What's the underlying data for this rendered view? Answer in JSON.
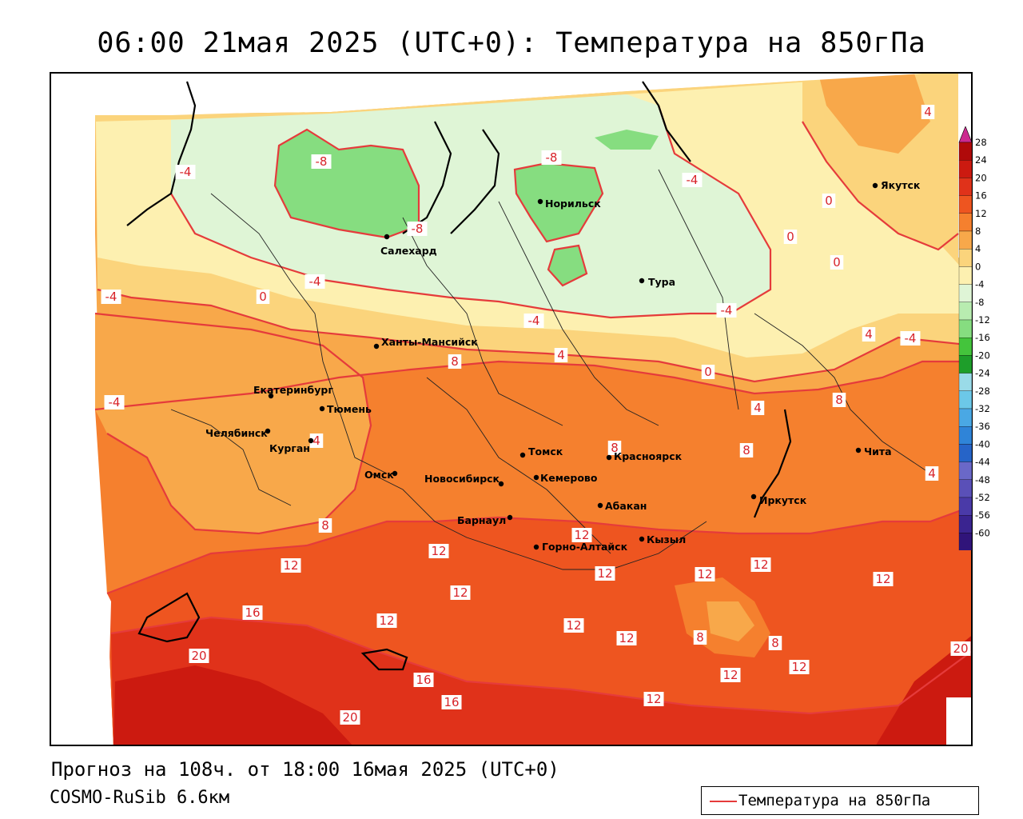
{
  "title": "06:00 21мая 2025 (UTC+0): Температура на 850гПа",
  "footer": {
    "forecast": "Прогноз на 108ч. от 18:00 16мая 2025 (UTC+0)",
    "model": "COSMO-RuSib 6.6км"
  },
  "legend": {
    "label": "Температура на 850гПа",
    "line_color": "#e53b3b"
  },
  "colorbar": {
    "ticks": [
      "28",
      "24",
      "20",
      "16",
      "12",
      "8",
      "4",
      "0",
      "-4",
      "-8",
      "-12",
      "-16",
      "-20",
      "-24",
      "-28",
      "-32",
      "-36",
      "-40",
      "-44",
      "-48",
      "-52",
      "-56",
      "-60"
    ],
    "colors": [
      "#b00a0a",
      "#cc1a10",
      "#e0321a",
      "#ee5520",
      "#f5802e",
      "#f8a84a",
      "#fbd47c",
      "#fdf0b0",
      "#dff5d6",
      "#b8ecb0",
      "#86dd80",
      "#44c43c",
      "#1e9e2a",
      "#9adbe8",
      "#6cc8e8",
      "#4aa8e4",
      "#2f84d8",
      "#2664c8",
      "#6a68c8",
      "#5a50b8",
      "#4a3aa8",
      "#3a2490",
      "#30147a"
    ],
    "top_arrow_color": "#cc2a90",
    "bottom_arrow_color": "#9a3ad0"
  },
  "cities": [
    {
      "name": "Салехард"
    },
    {
      "name": "Норильск"
    },
    {
      "name": "Якутск"
    },
    {
      "name": "Тура"
    },
    {
      "name": "Ханты-Мансийск"
    },
    {
      "name": "Екатеринбург"
    },
    {
      "name": "Тюмень"
    },
    {
      "name": "Челябинск"
    },
    {
      "name": "Курган"
    },
    {
      "name": "Омск"
    },
    {
      "name": "Новосибирск"
    },
    {
      "name": "Томск"
    },
    {
      "name": "Кемерово"
    },
    {
      "name": "Красноярск"
    },
    {
      "name": "Абакан"
    },
    {
      "name": "Барнаул"
    },
    {
      "name": "Горно-Алтайск"
    },
    {
      "name": "Кызыл"
    },
    {
      "name": "Иркутск"
    },
    {
      "name": "Чита"
    }
  ],
  "contour_labels": [
    "-8",
    "-4",
    "-8",
    "-8",
    "-4",
    "-4",
    "-4",
    "0",
    "-4",
    "-4",
    "0",
    "0",
    "-4",
    "0",
    "-4",
    "4",
    "4",
    "8",
    "4",
    "0",
    "4",
    "8",
    "8",
    "8",
    "4",
    "8",
    "12",
    "12",
    "12",
    "12",
    "12",
    "12",
    "12",
    "12",
    "16",
    "20",
    "12",
    "12",
    "8",
    "8",
    "12",
    "12",
    "16",
    "16",
    "20",
    "12",
    "20",
    "12",
    "4"
  ]
}
